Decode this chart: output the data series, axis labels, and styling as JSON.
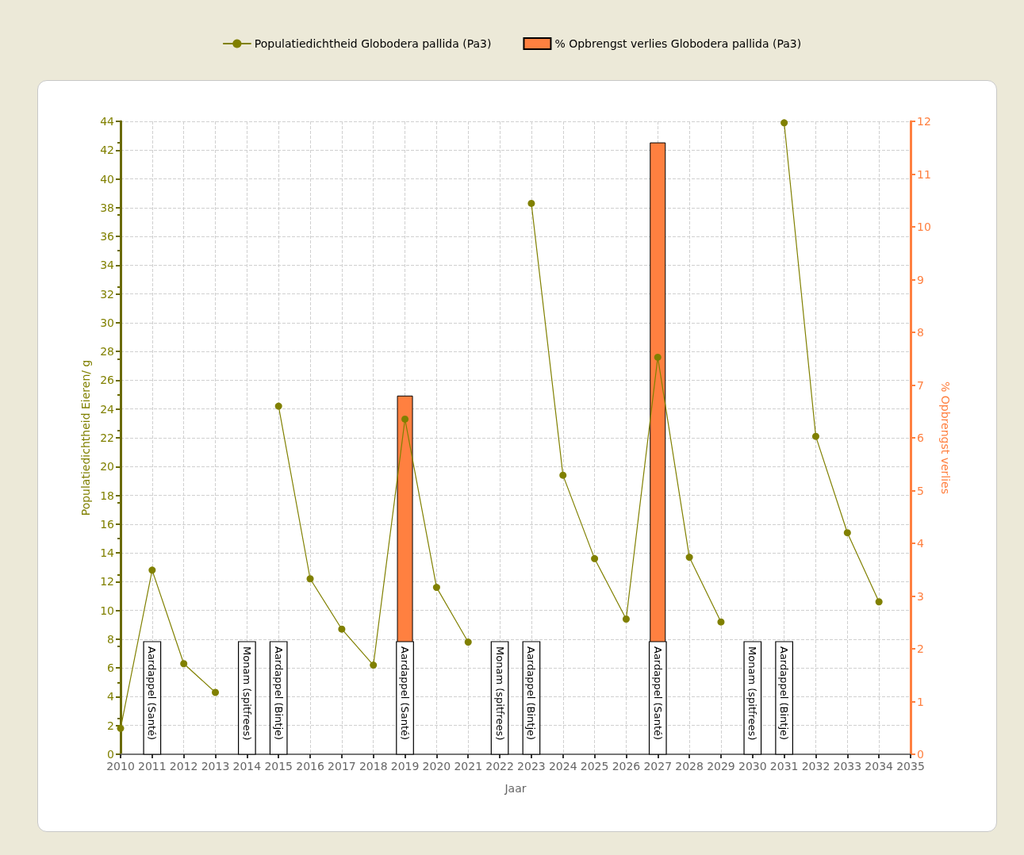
{
  "chart_data": {
    "type": "line",
    "xlabel": "Jaar",
    "ylabel": "Populatiedichtheid Eieren/ g",
    "y2label": "% Opbrengst verlies",
    "x": [
      2010,
      2011,
      2012,
      2013,
      2014,
      2015,
      2016,
      2017,
      2018,
      2019,
      2020,
      2021,
      2022,
      2023,
      2024,
      2025,
      2026,
      2027,
      2028,
      2029,
      2030,
      2031,
      2032,
      2033,
      2034
    ],
    "series": [
      {
        "name": "Populatiedichtheid Globodera pallida (Pa3)",
        "color": "#808000",
        "values": [
          1.8,
          12.8,
          6.3,
          4.3,
          null,
          24.2,
          12.2,
          8.7,
          6.2,
          23.3,
          11.6,
          7.8,
          null,
          38.3,
          19.4,
          13.6,
          9.4,
          27.6,
          13.7,
          9.2,
          null,
          43.9,
          22.1,
          15.4,
          10.6
        ]
      },
      {
        "name": "% Opbrengst verlies Globodera pallida (Pa3)",
        "type": "bar",
        "axis": "y2",
        "color": "#ff8040",
        "x": [
          2019,
          2027
        ],
        "values": [
          6.8,
          11.6
        ]
      }
    ],
    "xlim": [
      2010,
      2035
    ],
    "xticks": [
      2010,
      2011,
      2012,
      2013,
      2014,
      2015,
      2016,
      2017,
      2018,
      2019,
      2020,
      2021,
      2022,
      2023,
      2024,
      2025,
      2026,
      2027,
      2028,
      2029,
      2030,
      2031,
      2032,
      2033,
      2034,
      2035
    ],
    "ylim": [
      0,
      44
    ],
    "yticks": [
      0,
      2,
      4,
      6,
      8,
      10,
      12,
      14,
      16,
      18,
      20,
      22,
      24,
      26,
      28,
      30,
      32,
      34,
      36,
      38,
      40,
      42,
      44
    ],
    "y2lim": [
      0,
      12
    ],
    "y2ticks": [
      0,
      1,
      2,
      3,
      4,
      5,
      6,
      7,
      8,
      9,
      10,
      11,
      12
    ],
    "bands": [
      {
        "axis": "x",
        "from": 2010.73,
        "to": 2011.27,
        "label": "Aardappel (Santé)",
        "color": "#ffffff"
      },
      {
        "axis": "x",
        "from": 2013.73,
        "to": 2014.27,
        "label": "Monam (spitfrees)",
        "color": "#ffffff"
      },
      {
        "axis": "x",
        "from": 2014.73,
        "to": 2015.27,
        "label": "Aardappel (Bintje)",
        "color": "#ffffff"
      },
      {
        "axis": "x",
        "from": 2018.73,
        "to": 2019.27,
        "label": "Aardappel (Santé)",
        "color": "#ffffff"
      },
      {
        "axis": "x",
        "from": 2021.73,
        "to": 2022.27,
        "label": "Monam (spitfrees)",
        "color": "#ffffff"
      },
      {
        "axis": "x",
        "from": 2022.73,
        "to": 2023.27,
        "label": "Aardappel (Bintje)",
        "color": "#ffffff"
      },
      {
        "axis": "x",
        "from": 2026.73,
        "to": 2027.27,
        "label": "Aardappel (Santé)",
        "color": "#ffffff"
      },
      {
        "axis": "x",
        "from": 2029.73,
        "to": 2030.27,
        "label": "Monam (spitfrees)",
        "color": "#ffffff"
      },
      {
        "axis": "x",
        "from": 2030.73,
        "to": 2031.27,
        "label": "Aardappel (Bintje)",
        "color": "#ffffff"
      }
    ],
    "grid": true,
    "legend": "top",
    "marker": "circle",
    "line_style": "solid"
  }
}
